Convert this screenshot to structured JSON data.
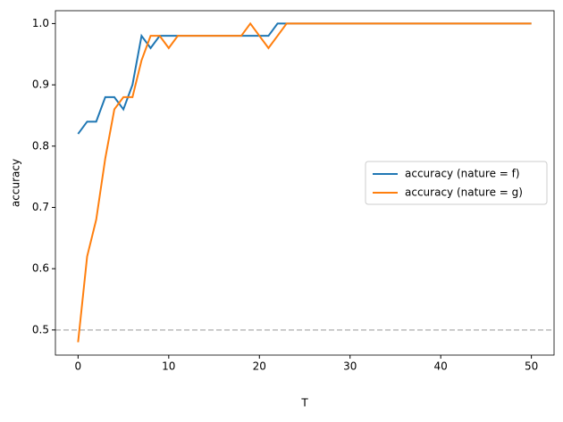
{
  "chart_data": {
    "type": "line",
    "xlabel": "T",
    "ylabel": "accuracy",
    "x": [
      0,
      1,
      2,
      3,
      4,
      5,
      6,
      7,
      8,
      9,
      10,
      11,
      12,
      13,
      14,
      15,
      16,
      17,
      18,
      19,
      20,
      21,
      22,
      23,
      24,
      25,
      26,
      27,
      28,
      29,
      30,
      31,
      32,
      33,
      34,
      35,
      36,
      37,
      38,
      39,
      40,
      41,
      42,
      43,
      44,
      45,
      46,
      47,
      48,
      49,
      50
    ],
    "series": [
      {
        "name": "accuracy (nature = f)",
        "color": "#1f77b4",
        "values": [
          0.82,
          0.84,
          0.84,
          0.88,
          0.88,
          0.86,
          0.9,
          0.98,
          0.96,
          0.98,
          0.98,
          0.98,
          0.98,
          0.98,
          0.98,
          0.98,
          0.98,
          0.98,
          0.98,
          0.98,
          0.98,
          0.98,
          1.0,
          1.0,
          1.0,
          1.0,
          1.0,
          1.0,
          1.0,
          1.0,
          1.0,
          1.0,
          1.0,
          1.0,
          1.0,
          1.0,
          1.0,
          1.0,
          1.0,
          1.0,
          1.0,
          1.0,
          1.0,
          1.0,
          1.0,
          1.0,
          1.0,
          1.0,
          1.0,
          1.0,
          1.0
        ]
      },
      {
        "name": "accuracy (nature = g)",
        "color": "#ff7f0e",
        "values": [
          0.48,
          0.62,
          0.68,
          0.78,
          0.86,
          0.88,
          0.88,
          0.94,
          0.98,
          0.98,
          0.96,
          0.98,
          0.98,
          0.98,
          0.98,
          0.98,
          0.98,
          0.98,
          0.98,
          1.0,
          0.98,
          0.96,
          0.98,
          1.0,
          1.0,
          1.0,
          1.0,
          1.0,
          1.0,
          1.0,
          1.0,
          1.0,
          1.0,
          1.0,
          1.0,
          1.0,
          1.0,
          1.0,
          1.0,
          1.0,
          1.0,
          1.0,
          1.0,
          1.0,
          1.0,
          1.0,
          1.0,
          1.0,
          1.0,
          1.0,
          1.0
        ]
      }
    ],
    "hline": 0.5,
    "hline_color": "#bbbbbb",
    "xlim": [
      -2.5,
      52.5
    ],
    "xticks": [
      0,
      10,
      20,
      30,
      40,
      50
    ],
    "ylim": [
      0.459,
      1.021
    ],
    "yticks": [
      {
        "value": 0.5,
        "label": "0.5"
      },
      {
        "value": 0.6,
        "label": "0.6"
      },
      {
        "value": 0.7,
        "label": "0.7"
      },
      {
        "value": 0.8,
        "label": "0.8"
      },
      {
        "value": 0.9,
        "label": "0.9"
      },
      {
        "value": 1.0,
        "label": "1.0"
      }
    ],
    "legend": "center right"
  }
}
